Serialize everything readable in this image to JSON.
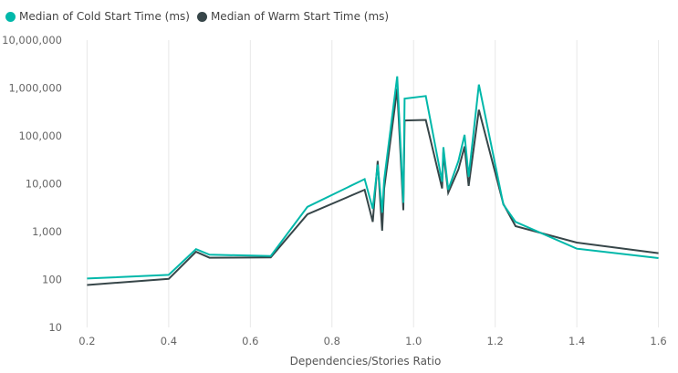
{
  "chart_data": {
    "type": "line",
    "title": "",
    "xlabel": "Dependencies/Stories Ratio",
    "ylabel": "",
    "yscale": "log",
    "xlim": [
      0.17,
      1.63
    ],
    "ylim": [
      10,
      10000000
    ],
    "grid": {
      "x": true,
      "y": false
    },
    "legend_position": "top-left",
    "x_ticks": [
      "0.2",
      "0.4",
      "0.6",
      "0.8",
      "1.0",
      "1.2",
      "1.4",
      "1.6"
    ],
    "x_tick_values": [
      0.2,
      0.4,
      0.6,
      0.8,
      1.0,
      1.2,
      1.4,
      1.6
    ],
    "y_ticks": [
      "10",
      "100",
      "1,000",
      "10,000",
      "100,000",
      "1,000,000",
      "10,000,000"
    ],
    "y_tick_values": [
      10,
      100,
      1000,
      10000,
      100000,
      1000000,
      10000000
    ],
    "series": [
      {
        "name": "Median of Cold Start Time (ms)",
        "color": "#01B8AA",
        "points": [
          [
            0.2,
            105
          ],
          [
            0.4,
            125
          ],
          [
            0.467,
            430
          ],
          [
            0.5,
            330
          ],
          [
            0.65,
            310
          ],
          [
            0.74,
            3300
          ],
          [
            0.88,
            12500
          ],
          [
            0.9,
            3000
          ],
          [
            0.912,
            25000
          ],
          [
            0.923,
            2500
          ],
          [
            0.928,
            12000
          ],
          [
            0.96,
            1750000
          ],
          [
            0.975,
            4000
          ],
          [
            0.978,
            600000
          ],
          [
            1.03,
            680000
          ],
          [
            1.07,
            11000
          ],
          [
            1.073,
            58000
          ],
          [
            1.085,
            7500
          ],
          [
            1.11,
            30000
          ],
          [
            1.125,
            105000
          ],
          [
            1.135,
            14000
          ],
          [
            1.16,
            1180000
          ],
          [
            1.22,
            3700
          ],
          [
            1.25,
            1600
          ],
          [
            1.4,
            440
          ],
          [
            1.6,
            280
          ]
        ]
      },
      {
        "name": "Median of Warm Start Time (ms)",
        "color": "#374649",
        "points": [
          [
            0.2,
            77
          ],
          [
            0.4,
            103
          ],
          [
            0.467,
            380
          ],
          [
            0.5,
            285
          ],
          [
            0.65,
            290
          ],
          [
            0.74,
            2300
          ],
          [
            0.88,
            7500
          ],
          [
            0.9,
            1600
          ],
          [
            0.912,
            30000
          ],
          [
            0.923,
            1050
          ],
          [
            0.928,
            8000
          ],
          [
            0.96,
            960000
          ],
          [
            0.975,
            2800
          ],
          [
            0.978,
            210000
          ],
          [
            1.03,
            215000
          ],
          [
            1.07,
            8000
          ],
          [
            1.073,
            45000
          ],
          [
            1.085,
            6500
          ],
          [
            1.11,
            20000
          ],
          [
            1.125,
            60000
          ],
          [
            1.135,
            9000
          ],
          [
            1.16,
            350000
          ],
          [
            1.22,
            3800
          ],
          [
            1.25,
            1300
          ],
          [
            1.4,
            590
          ],
          [
            1.6,
            355
          ]
        ]
      }
    ]
  }
}
